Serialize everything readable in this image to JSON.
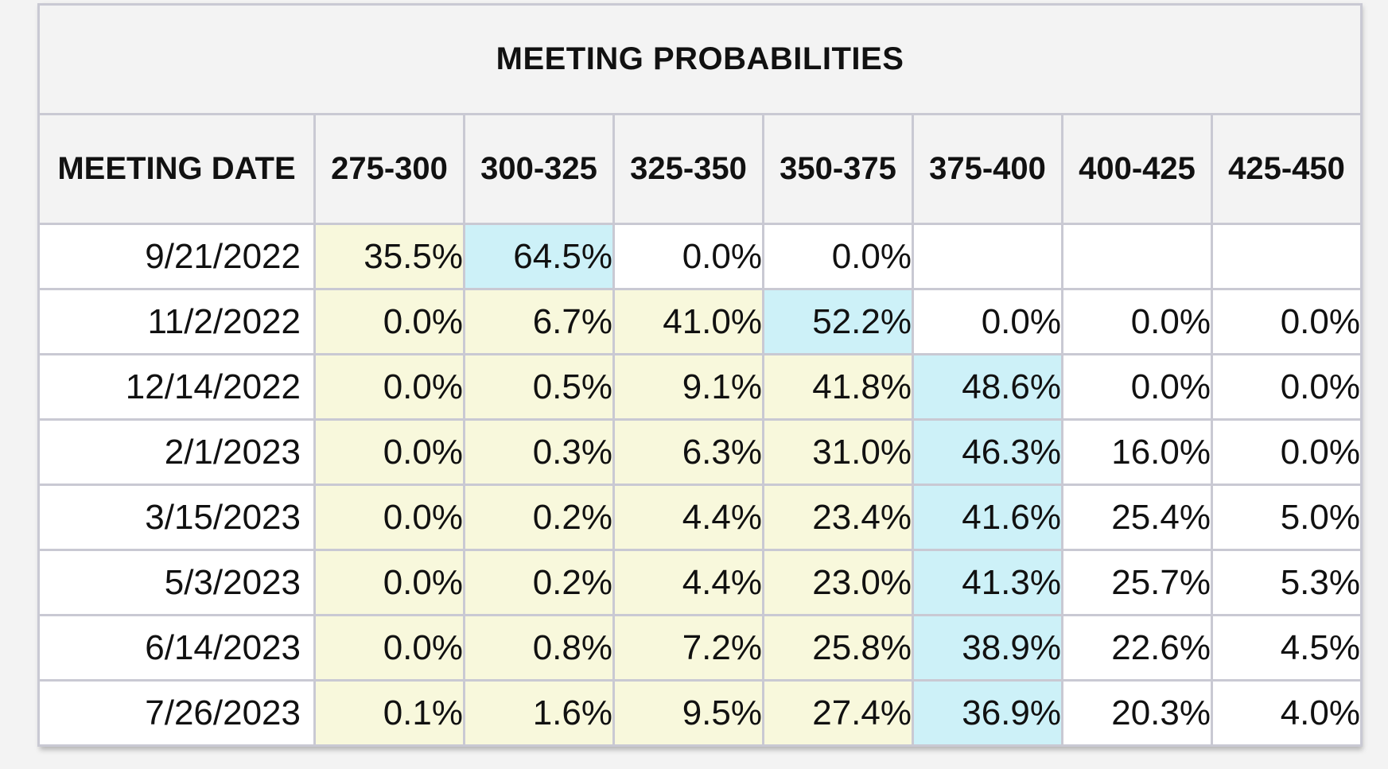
{
  "title": "MEETING PROBABILITIES",
  "headers": [
    "MEETING DATE",
    "275-300",
    "300-325",
    "325-350",
    "350-375",
    "375-400",
    "400-425",
    "425-450"
  ],
  "colors": {
    "yellow": "#f8f8dc",
    "blue": "#cdf1f8",
    "white": "#ffffff",
    "header_bg": "#f3f3f3",
    "border": "#c9c9d3"
  },
  "rows": [
    {
      "date": "9/21/2022",
      "cells": [
        {
          "value": "35.5%",
          "color": "yellow"
        },
        {
          "value": "64.5%",
          "color": "blue"
        },
        {
          "value": "0.0%",
          "color": "white"
        },
        {
          "value": "0.0%",
          "color": "white"
        },
        {
          "value": "",
          "color": "white"
        },
        {
          "value": "",
          "color": "white"
        },
        {
          "value": "",
          "color": "white"
        }
      ]
    },
    {
      "date": "11/2/2022",
      "cells": [
        {
          "value": "0.0%",
          "color": "yellow"
        },
        {
          "value": "6.7%",
          "color": "yellow"
        },
        {
          "value": "41.0%",
          "color": "yellow"
        },
        {
          "value": "52.2%",
          "color": "blue"
        },
        {
          "value": "0.0%",
          "color": "white"
        },
        {
          "value": "0.0%",
          "color": "white"
        },
        {
          "value": "0.0%",
          "color": "white"
        }
      ]
    },
    {
      "date": "12/14/2022",
      "cells": [
        {
          "value": "0.0%",
          "color": "yellow"
        },
        {
          "value": "0.5%",
          "color": "yellow"
        },
        {
          "value": "9.1%",
          "color": "yellow"
        },
        {
          "value": "41.8%",
          "color": "yellow"
        },
        {
          "value": "48.6%",
          "color": "blue"
        },
        {
          "value": "0.0%",
          "color": "white"
        },
        {
          "value": "0.0%",
          "color": "white"
        }
      ]
    },
    {
      "date": "2/1/2023",
      "cells": [
        {
          "value": "0.0%",
          "color": "yellow"
        },
        {
          "value": "0.3%",
          "color": "yellow"
        },
        {
          "value": "6.3%",
          "color": "yellow"
        },
        {
          "value": "31.0%",
          "color": "yellow"
        },
        {
          "value": "46.3%",
          "color": "blue"
        },
        {
          "value": "16.0%",
          "color": "white"
        },
        {
          "value": "0.0%",
          "color": "white"
        }
      ]
    },
    {
      "date": "3/15/2023",
      "cells": [
        {
          "value": "0.0%",
          "color": "yellow"
        },
        {
          "value": "0.2%",
          "color": "yellow"
        },
        {
          "value": "4.4%",
          "color": "yellow"
        },
        {
          "value": "23.4%",
          "color": "yellow"
        },
        {
          "value": "41.6%",
          "color": "blue"
        },
        {
          "value": "25.4%",
          "color": "white"
        },
        {
          "value": "5.0%",
          "color": "white"
        }
      ]
    },
    {
      "date": "5/3/2023",
      "cells": [
        {
          "value": "0.0%",
          "color": "yellow"
        },
        {
          "value": "0.2%",
          "color": "yellow"
        },
        {
          "value": "4.4%",
          "color": "yellow"
        },
        {
          "value": "23.0%",
          "color": "yellow"
        },
        {
          "value": "41.3%",
          "color": "blue"
        },
        {
          "value": "25.7%",
          "color": "white"
        },
        {
          "value": "5.3%",
          "color": "white"
        }
      ]
    },
    {
      "date": "6/14/2023",
      "cells": [
        {
          "value": "0.0%",
          "color": "yellow"
        },
        {
          "value": "0.8%",
          "color": "yellow"
        },
        {
          "value": "7.2%",
          "color": "yellow"
        },
        {
          "value": "25.8%",
          "color": "yellow"
        },
        {
          "value": "38.9%",
          "color": "blue"
        },
        {
          "value": "22.6%",
          "color": "white"
        },
        {
          "value": "4.5%",
          "color": "white"
        }
      ]
    },
    {
      "date": "7/26/2023",
      "cells": [
        {
          "value": "0.1%",
          "color": "yellow"
        },
        {
          "value": "1.6%",
          "color": "yellow"
        },
        {
          "value": "9.5%",
          "color": "yellow"
        },
        {
          "value": "27.4%",
          "color": "yellow"
        },
        {
          "value": "36.9%",
          "color": "blue"
        },
        {
          "value": "20.3%",
          "color": "white"
        },
        {
          "value": "4.0%",
          "color": "white"
        }
      ]
    }
  ]
}
